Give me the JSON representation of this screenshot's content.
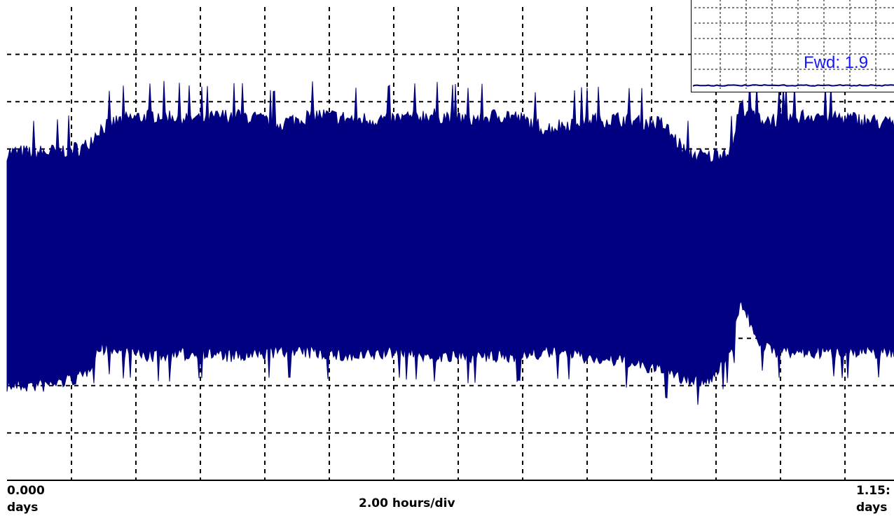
{
  "colors": {
    "trace": "#000080",
    "grid": "#000000",
    "inset_label": "#1515ff",
    "background": "#ffffff"
  },
  "axis": {
    "start_value": "0.000",
    "start_unit": "days",
    "end_value": "1.15:",
    "end_unit": "days",
    "time_per_div": "2.00 hours/div"
  },
  "inset": {
    "label": "Fwd: 1.9"
  },
  "chart_data": {
    "type": "area",
    "title": "",
    "xlabel": "2.00 hours/div",
    "ylabel": "",
    "x_unit": "days",
    "xlim": [
      0,
      1.15
    ],
    "x_divisions": 14,
    "y_divisions": 10,
    "grid": true,
    "y_scale": "relative (no printed y ticks)",
    "series": [
      {
        "style": "envelope (min/max band)",
        "x": [
          0.0,
          0.05,
          0.1,
          0.12,
          0.15,
          0.2,
          0.25,
          0.3,
          0.35,
          0.4,
          0.45,
          0.5,
          0.55,
          0.6,
          0.65,
          0.7,
          0.75,
          0.8,
          0.85,
          0.88,
          0.91,
          0.94,
          0.95,
          0.98,
          1.0,
          1.05,
          1.1,
          1.15
        ],
        "upper": [
          6.9,
          6.9,
          7.0,
          7.4,
          7.6,
          7.7,
          7.6,
          7.7,
          7.5,
          7.7,
          7.6,
          7.6,
          7.7,
          7.6,
          7.7,
          7.4,
          7.6,
          7.6,
          7.5,
          6.9,
          6.8,
          7.0,
          7.9,
          7.6,
          7.6,
          7.7,
          7.6,
          7.5
        ],
        "lower": [
          2.0,
          2.0,
          2.2,
          2.8,
          2.7,
          2.6,
          2.7,
          2.6,
          2.7,
          2.7,
          2.6,
          2.7,
          2.6,
          2.6,
          2.6,
          2.7,
          2.6,
          2.5,
          2.3,
          2.1,
          2.1,
          2.7,
          3.8,
          2.8,
          2.7,
          2.7,
          2.7,
          2.7
        ]
      }
    ]
  }
}
